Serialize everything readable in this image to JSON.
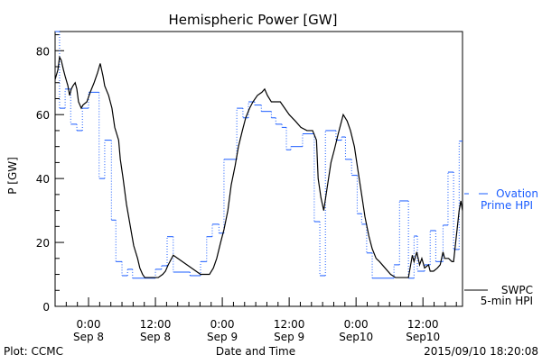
{
  "chart_data": {
    "type": "line",
    "title": "Hemispheric Power [GW]",
    "xlabel": "Date and Time",
    "ylabel": "P [GW]",
    "x_units": "hours since 2015-09-08 00:00 UT",
    "xlim": [
      -6.0,
      67.1
    ],
    "ylim": [
      0,
      86
    ],
    "y_ticks": [
      0,
      20,
      40,
      60,
      80
    ],
    "x_ticks": [
      {
        "h": 0,
        "line1": "0:00",
        "line2": "Sep 8"
      },
      {
        "h": 12,
        "line1": "12:00",
        "line2": "Sep 8"
      },
      {
        "h": 24,
        "line1": "0:00",
        "line2": "Sep 9"
      },
      {
        "h": 36,
        "line1": "12:00",
        "line2": "Sep 9"
      },
      {
        "h": 48,
        "line1": "0:00",
        "line2": "Sep10"
      },
      {
        "h": 60,
        "line1": "12:00",
        "line2": "Sep10"
      }
    ],
    "series": [
      {
        "name": "SWPC 5-min HPI",
        "legend_line1": "SWPC",
        "legend_line2": "5-min HPI",
        "color": "#000000",
        "style": "solid",
        "points": [
          [
            -6.0,
            71
          ],
          [
            -5.5,
            74
          ],
          [
            -5.2,
            78
          ],
          [
            -4.9,
            77
          ],
          [
            -4.5,
            74
          ],
          [
            -4.2,
            72
          ],
          [
            -3.7,
            69
          ],
          [
            -3.4,
            66
          ],
          [
            -3.1,
            68
          ],
          [
            -2.8,
            69
          ],
          [
            -2.4,
            70
          ],
          [
            -2.1,
            68
          ],
          [
            -1.8,
            64
          ],
          [
            -1.3,
            62
          ],
          [
            -1.0,
            63
          ],
          [
            -0.3,
            64
          ],
          [
            0.3,
            67
          ],
          [
            1.0,
            70
          ],
          [
            1.6,
            73
          ],
          [
            2.1,
            76
          ],
          [
            2.6,
            72
          ],
          [
            2.9,
            69
          ],
          [
            3.6,
            66
          ],
          [
            4.2,
            62
          ],
          [
            4.7,
            56
          ],
          [
            5.4,
            52
          ],
          [
            5.7,
            46
          ],
          [
            6.2,
            40
          ],
          [
            6.8,
            32
          ],
          [
            7.3,
            27
          ],
          [
            7.8,
            22
          ],
          [
            8.1,
            19
          ],
          [
            8.8,
            15
          ],
          [
            9.2,
            12
          ],
          [
            9.7,
            10
          ],
          [
            10.1,
            9
          ],
          [
            11.0,
            9
          ],
          [
            11.7,
            9
          ],
          [
            12.5,
            9
          ],
          [
            13.3,
            10
          ],
          [
            13.8,
            11
          ],
          [
            14.3,
            13
          ],
          [
            15.2,
            16
          ],
          [
            20.1,
            10
          ],
          [
            21.7,
            10
          ],
          [
            22.4,
            12
          ],
          [
            23.0,
            15
          ],
          [
            23.7,
            20
          ],
          [
            24.3,
            24
          ],
          [
            25.0,
            30
          ],
          [
            25.6,
            38
          ],
          [
            26.3,
            44
          ],
          [
            26.9,
            50
          ],
          [
            27.6,
            55
          ],
          [
            28.2,
            59
          ],
          [
            28.9,
            62
          ],
          [
            29.5,
            64
          ],
          [
            30.3,
            66
          ],
          [
            31.1,
            67
          ],
          [
            31.6,
            68
          ],
          [
            32.1,
            66
          ],
          [
            32.8,
            64
          ],
          [
            33.6,
            64
          ],
          [
            34.4,
            64
          ],
          [
            35.2,
            62
          ],
          [
            36.0,
            60
          ],
          [
            37.1,
            58
          ],
          [
            38.1,
            56
          ],
          [
            39.2,
            55
          ],
          [
            40.2,
            55
          ],
          [
            40.9,
            52
          ],
          [
            41.2,
            40
          ],
          [
            41.7,
            34
          ],
          [
            42.2,
            30
          ],
          [
            42.8,
            37
          ],
          [
            43.5,
            45
          ],
          [
            44.1,
            49
          ],
          [
            44.8,
            54
          ],
          [
            45.4,
            58
          ],
          [
            45.7,
            60
          ],
          [
            46.4,
            58
          ],
          [
            47.0,
            55
          ],
          [
            47.7,
            50
          ],
          [
            48.3,
            43
          ],
          [
            49.0,
            35
          ],
          [
            49.6,
            28
          ],
          [
            50.3,
            22
          ],
          [
            50.9,
            18
          ],
          [
            51.6,
            15
          ],
          [
            52.2,
            14
          ],
          [
            53.2,
            12
          ],
          [
            54.2,
            10
          ],
          [
            55.1,
            9
          ],
          [
            56.4,
            9
          ],
          [
            57.4,
            9
          ],
          [
            57.7,
            12
          ],
          [
            58.1,
            16
          ],
          [
            58.4,
            14
          ],
          [
            58.9,
            17
          ],
          [
            59.4,
            13
          ],
          [
            59.8,
            15
          ],
          [
            60.3,
            12
          ],
          [
            61.0,
            13
          ],
          [
            61.3,
            11
          ],
          [
            61.9,
            11
          ],
          [
            62.6,
            12
          ],
          [
            63.1,
            13
          ],
          [
            63.6,
            17
          ],
          [
            63.9,
            15
          ],
          [
            64.6,
            15
          ],
          [
            65.2,
            14
          ],
          [
            65.5,
            14
          ],
          [
            66.0,
            22
          ],
          [
            66.5,
            30
          ],
          [
            66.8,
            33
          ],
          [
            67.1,
            30
          ]
        ]
      },
      {
        "name": "Ovation Prime HPI",
        "legend_line1": "Ovation",
        "legend_line2": "Prime HPI",
        "color": "#1a5cff",
        "style": "step-dotted",
        "steps": [
          [
            -6.0,
            86
          ],
          [
            -5.2,
            62
          ],
          [
            -4.2,
            68
          ],
          [
            -3.2,
            57
          ],
          [
            -2.1,
            55
          ],
          [
            -1.1,
            62
          ],
          [
            0.0,
            67
          ],
          [
            1.9,
            40
          ],
          [
            2.9,
            52
          ],
          [
            4.1,
            27
          ],
          [
            4.9,
            14
          ],
          [
            6.0,
            9.6
          ],
          [
            7.0,
            11.6
          ],
          [
            7.9,
            8.8
          ],
          [
            12.0,
            11.6
          ],
          [
            13.1,
            12.7
          ],
          [
            14.1,
            21.8
          ],
          [
            15.2,
            10.7
          ],
          [
            18.2,
            9.6
          ],
          [
            20.1,
            14
          ],
          [
            21.2,
            21.8
          ],
          [
            22.2,
            25.7
          ],
          [
            23.4,
            22.9
          ],
          [
            24.3,
            46
          ],
          [
            26.6,
            62
          ],
          [
            27.7,
            59
          ],
          [
            28.7,
            64
          ],
          [
            29.8,
            63
          ],
          [
            31.0,
            61
          ],
          [
            32.8,
            59
          ],
          [
            33.6,
            57
          ],
          [
            34.7,
            56
          ],
          [
            35.5,
            49
          ],
          [
            36.3,
            50
          ],
          [
            38.4,
            54
          ],
          [
            40.5,
            26.5
          ],
          [
            41.5,
            9.6
          ],
          [
            42.5,
            55
          ],
          [
            44.4,
            52
          ],
          [
            45.4,
            53
          ],
          [
            46.1,
            46
          ],
          [
            47.2,
            41
          ],
          [
            48.2,
            29
          ],
          [
            49.0,
            25.7
          ],
          [
            49.9,
            16.7
          ],
          [
            50.9,
            8.8
          ],
          [
            54.8,
            13
          ],
          [
            55.8,
            33
          ],
          [
            57.4,
            8.8
          ],
          [
            58.4,
            22
          ],
          [
            59.0,
            11
          ],
          [
            60.3,
            13
          ],
          [
            61.3,
            23.7
          ],
          [
            62.3,
            14
          ],
          [
            63.6,
            25.4
          ],
          [
            64.5,
            42
          ],
          [
            65.5,
            17.8
          ],
          [
            66.5,
            51.7
          ]
        ]
      }
    ],
    "legend_placement": "right"
  },
  "footer": {
    "plot_credit": "Plot: CCMC",
    "timestamp": "2015/09/10 18:20:08"
  }
}
